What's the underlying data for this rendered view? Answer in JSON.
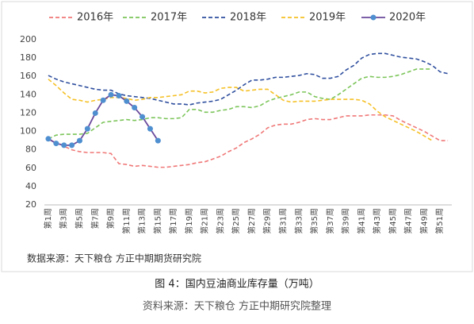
{
  "chart_data": {
    "type": "line",
    "source_note": "数据来源：天下粮仓 方正中期期货研究院",
    "caption": "图 4：国内豆油商业库存量（万吨）",
    "caption_source": "资料来源：天下粮仓  方正中期研究院整理",
    "categories": [
      "第1周",
      null,
      "第3周",
      null,
      "第5周",
      null,
      "第7周",
      null,
      "第9周",
      null,
      "第11周",
      null,
      "第13周",
      null,
      "第15周",
      null,
      "第17周",
      null,
      "第19周",
      null,
      "第21周",
      null,
      "第23周",
      null,
      "第25周",
      null,
      "第27周",
      null,
      "第29周",
      null,
      "第31周",
      null,
      "第33周",
      null,
      "第35周",
      null,
      "第37周",
      null,
      "第39周",
      null,
      "第41周",
      null,
      "第43周",
      null,
      "第45周",
      null,
      "第47周",
      null,
      "第49周",
      null,
      "第51周",
      null
    ],
    "ylim": [
      20,
      200
    ],
    "yticks": [
      20,
      40,
      60,
      80,
      100,
      120,
      140,
      160,
      180,
      200
    ],
    "grid": false,
    "legend": "top",
    "series": [
      {
        "name": "2016年",
        "color": "#f07878",
        "dashed": true,
        "values": [
          92,
          88,
          84,
          80,
          78,
          77,
          77,
          77,
          76,
          65,
          64,
          62,
          63,
          62,
          61,
          61,
          62,
          63,
          64,
          66,
          67,
          70,
          73,
          78,
          82,
          88,
          92,
          97,
          104,
          107,
          108,
          108,
          110,
          113,
          114,
          113,
          113,
          115,
          117,
          117,
          117,
          118,
          118,
          118,
          117,
          112,
          108,
          104,
          100,
          95,
          90,
          90
        ]
      },
      {
        "name": "2017年",
        "color": "#7cc55a",
        "dashed": true,
        "values": [
          92,
          96,
          97,
          97,
          97,
          98,
          104,
          110,
          111,
          112,
          113,
          112,
          113,
          115,
          115,
          114,
          114,
          115,
          124,
          124,
          121,
          121,
          123,
          124,
          127,
          127,
          126,
          128,
          133,
          136,
          138,
          140,
          143,
          143,
          138,
          136,
          135,
          140,
          146,
          152,
          158,
          160,
          159,
          159,
          160,
          162,
          165,
          168,
          168,
          168,
          null,
          null
        ]
      },
      {
        "name": "2018年",
        "color": "#2f4f9e",
        "dashed": true,
        "values": [
          161,
          157,
          154,
          152,
          150,
          148,
          146,
          145,
          145,
          141,
          139,
          138,
          137,
          136,
          134,
          132,
          130,
          130,
          129,
          131,
          132,
          133,
          135,
          140,
          145,
          151,
          156,
          156,
          157,
          159,
          159,
          160,
          161,
          163,
          162,
          158,
          158,
          160,
          167,
          172,
          180,
          184,
          185,
          185,
          183,
          181,
          180,
          179,
          176,
          172,
          165,
          163
        ]
      },
      {
        "name": "2019年",
        "color": "#f5c026",
        "dashed": true,
        "values": [
          157,
          150,
          142,
          135,
          134,
          132,
          134,
          135,
          137,
          137,
          136,
          134,
          135,
          137,
          137,
          138,
          139,
          140,
          144,
          144,
          142,
          143,
          147,
          148,
          148,
          144,
          145,
          146,
          146,
          140,
          134,
          132,
          133,
          133,
          133,
          134,
          135,
          135,
          135,
          135,
          134,
          130,
          122,
          116,
          112,
          108,
          104,
          100,
          95,
          90,
          null,
          null
        ]
      },
      {
        "name": "2020年",
        "color": "#6a4a9c",
        "marker_color": "#4f8fd0",
        "dashed": false,
        "values": [
          92,
          87,
          85,
          85,
          90,
          103,
          120,
          134,
          140,
          139,
          133,
          126,
          116,
          103,
          90,
          null,
          null,
          null,
          null,
          null,
          null,
          null,
          null,
          null,
          null,
          null,
          null,
          null,
          null,
          null,
          null,
          null,
          null,
          null,
          null,
          null,
          null,
          null,
          null,
          null,
          null,
          null,
          null,
          null,
          null,
          null,
          null,
          null,
          null,
          null,
          null,
          null
        ]
      }
    ]
  }
}
